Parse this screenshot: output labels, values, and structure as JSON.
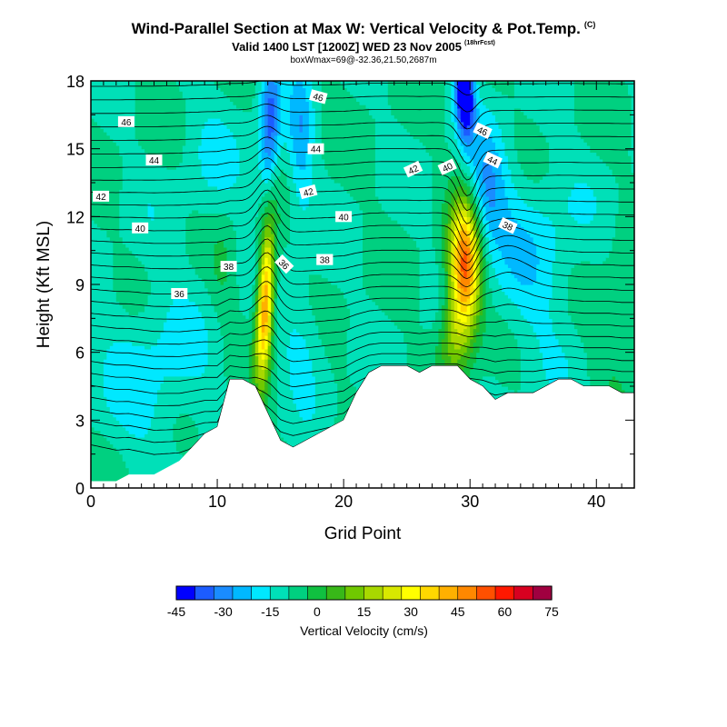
{
  "chart_data": {
    "type": "heatmap",
    "title": "Wind-Parallel Section at Max W: Vertical Velocity & Pot.Temp.",
    "title_mark": "(C)",
    "subtitle": "Valid 1400 LST [1200Z] WED 23 Nov 2005",
    "subtitle_mark": "(18hrFcst)",
    "subtitle2": "boxWmax=69@-32.36,21.50,2687m",
    "xlabel": "Grid Point",
    "ylabel": "Height (Kft MSL)",
    "xlim": [
      0,
      43
    ],
    "ylim": [
      0,
      18
    ],
    "xticks": [
      0,
      10,
      20,
      30,
      40
    ],
    "yticks": [
      0,
      3,
      6,
      9,
      12,
      15,
      18
    ],
    "grid": false,
    "colorbar": {
      "label": "Vertical Velocity (cm/s)",
      "placement": "bottom",
      "min": -45,
      "max": 75,
      "step": 7.5,
      "tick_labels": [
        "-45",
        "-30",
        "-15",
        "0",
        "15",
        "30",
        "45",
        "60",
        "75"
      ],
      "colors": [
        "#0000ff",
        "#1c5cff",
        "#1a8cff",
        "#00b8ff",
        "#00e8ff",
        "#00e0b8",
        "#00d080",
        "#10c040",
        "#38b818",
        "#70c800",
        "#a8d800",
        "#d8e800",
        "#ffff00",
        "#ffd800",
        "#ffb000",
        "#ff8800",
        "#ff5000",
        "#ff1800",
        "#d80020",
        "#a00040"
      ]
    },
    "terrain_top": [
      {
        "x": 0,
        "y": 0.3
      },
      {
        "x": 1,
        "y": 0.3
      },
      {
        "x": 2,
        "y": 0.3
      },
      {
        "x": 3,
        "y": 0.6
      },
      {
        "x": 4,
        "y": 0.6
      },
      {
        "x": 5,
        "y": 0.6
      },
      {
        "x": 6,
        "y": 0.9
      },
      {
        "x": 7,
        "y": 1.2
      },
      {
        "x": 8,
        "y": 1.8
      },
      {
        "x": 9,
        "y": 2.4
      },
      {
        "x": 10,
        "y": 2.7
      },
      {
        "x": 11,
        "y": 4.8
      },
      {
        "x": 12,
        "y": 4.8
      },
      {
        "x": 13,
        "y": 4.5
      },
      {
        "x": 14,
        "y": 3.3
      },
      {
        "x": 15,
        "y": 2.1
      },
      {
        "x": 16,
        "y": 1.8
      },
      {
        "x": 17,
        "y": 2.1
      },
      {
        "x": 18,
        "y": 2.4
      },
      {
        "x": 19,
        "y": 2.7
      },
      {
        "x": 20,
        "y": 3.0
      },
      {
        "x": 21,
        "y": 4.2
      },
      {
        "x": 22,
        "y": 5.1
      },
      {
        "x": 23,
        "y": 5.4
      },
      {
        "x": 24,
        "y": 5.4
      },
      {
        "x": 25,
        "y": 5.4
      },
      {
        "x": 26,
        "y": 5.1
      },
      {
        "x": 27,
        "y": 5.4
      },
      {
        "x": 28,
        "y": 5.4
      },
      {
        "x": 29,
        "y": 5.4
      },
      {
        "x": 30,
        "y": 4.8
      },
      {
        "x": 31,
        "y": 4.5
      },
      {
        "x": 32,
        "y": 3.9
      },
      {
        "x": 33,
        "y": 4.2
      },
      {
        "x": 34,
        "y": 4.2
      },
      {
        "x": 35,
        "y": 4.2
      },
      {
        "x": 36,
        "y": 4.5
      },
      {
        "x": 37,
        "y": 4.8
      },
      {
        "x": 38,
        "y": 4.8
      },
      {
        "x": 39,
        "y": 4.5
      },
      {
        "x": 40,
        "y": 4.5
      },
      {
        "x": 41,
        "y": 4.5
      },
      {
        "x": 42,
        "y": 4.2
      },
      {
        "x": 43,
        "y": 4.2
      }
    ],
    "features": [
      {
        "kind": "updraft",
        "peak": 60,
        "points": [
          {
            "x": 13.6,
            "y": 5.0
          },
          {
            "x": 13.8,
            "y": 9.0
          },
          {
            "x": 14.2,
            "y": 12.0
          }
        ]
      },
      {
        "kind": "downdraft",
        "peak": -25,
        "points": [
          {
            "x": 13.9,
            "y": 13.0
          },
          {
            "x": 14.4,
            "y": 15.5
          },
          {
            "x": 14.0,
            "y": 18.0
          }
        ]
      },
      {
        "kind": "downdraft",
        "peak": -15,
        "points": [
          {
            "x": 16.5,
            "y": 10.0
          },
          {
            "x": 16.8,
            "y": 14.0
          },
          {
            "x": 16.5,
            "y": 18.0
          }
        ]
      },
      {
        "kind": "updraft",
        "peak": 69,
        "points": [
          {
            "x": 29.8,
            "y": 6.0
          },
          {
            "x": 29.5,
            "y": 9.5
          },
          {
            "x": 29.5,
            "y": 12.5
          }
        ]
      },
      {
        "kind": "downdraft",
        "peak": -40,
        "points": [
          {
            "x": 29.8,
            "y": 14.5
          },
          {
            "x": 29.6,
            "y": 16.5
          },
          {
            "x": 29.5,
            "y": 18.0
          }
        ]
      },
      {
        "kind": "downdraft",
        "peak": -22,
        "points": [
          {
            "x": 30.8,
            "y": 11.5
          },
          {
            "x": 31.5,
            "y": 13.5
          }
        ]
      }
    ],
    "contour_labels": [
      "46",
      "44",
      "42",
      "40",
      "38",
      "38",
      "36",
      "46",
      "44",
      "42",
      "40",
      "38",
      "36",
      "42",
      "40",
      "46",
      "44",
      "38"
    ]
  }
}
